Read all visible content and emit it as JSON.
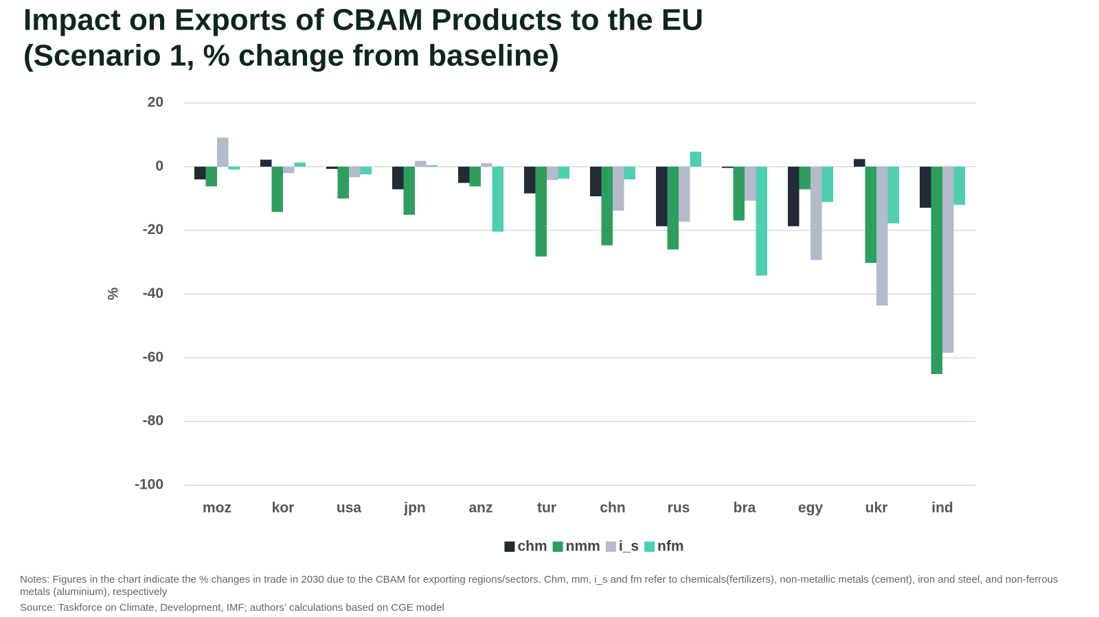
{
  "chart_data": {
    "type": "bar",
    "title": "Impact on Exports of CBAM Products to the EU",
    "subtitle": "(Scenario 1, % change from baseline)",
    "ylabel": "%",
    "categories": [
      "moz",
      "kor",
      "usa",
      "jpn",
      "anz",
      "tur",
      "chn",
      "rus",
      "bra",
      "egy",
      "ukr",
      "ind"
    ],
    "series": [
      {
        "name": "chm",
        "color": "#232b36",
        "values": [
          -4,
          2.2,
          -0.7,
          -7.1,
          -5.1,
          -8.4,
          -9.3,
          -18.7,
          -0.4,
          -18.7,
          2.4,
          -12.9
        ]
      },
      {
        "name": "nmm",
        "color": "#2e9e5f",
        "values": [
          -6.2,
          -14.2,
          -10,
          -15.1,
          -6.2,
          -28.2,
          -24.7,
          -26,
          -16.9,
          -7.1,
          -30.2,
          -65.1
        ]
      },
      {
        "name": "i_s",
        "color": "#b3bac9",
        "values": [
          9.1,
          -2,
          -3.3,
          1.8,
          1.1,
          -4.2,
          -13.8,
          -17.3,
          -10.7,
          -29.3,
          -43.6,
          -58.4
        ]
      },
      {
        "name": "nfm",
        "color": "#4ecfb0",
        "values": [
          -0.9,
          1.3,
          -2.4,
          0.4,
          -20.4,
          -3.8,
          -4,
          4.7,
          -34.2,
          -11.1,
          -17.8,
          -12
        ]
      }
    ],
    "ylim": [
      -100,
      20
    ],
    "yticks": [
      20,
      0,
      -20,
      -40,
      -60,
      -80,
      -100
    ],
    "grid": true,
    "legend": "bottom",
    "notes": "Notes: Figures in the chart indicate the % changes in trade in 2030 due to the CBAM for exporting regions/sectors. Chm, mm, i_s and fm refer to chemicals(fertilizers), non-metallic metals (cement), iron and steel, and non-ferrous metals (aluminium), respectively",
    "source": "Source: Taskforce on Climate, Development, IMF; authors’ calculations based on CGE model"
  }
}
